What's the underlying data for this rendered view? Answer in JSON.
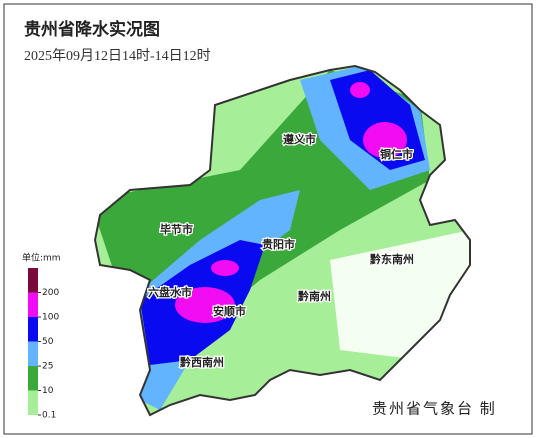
{
  "header": {
    "title": "贵州省降水实况图",
    "subtitle": "2025年09月12日14时-14日12时"
  },
  "legend": {
    "unit": "单位:mm",
    "ticks": [
      0.1,
      10,
      25,
      50,
      100,
      200
    ],
    "colors": [
      "#a6ee98",
      "#3aa83a",
      "#62b4ff",
      "#0a0af0",
      "#f20cf2",
      "#7a0a3c"
    ]
  },
  "regions": [
    {
      "label": "遵义市"
    },
    {
      "label": "铜仁市"
    },
    {
      "label": "毕节市"
    },
    {
      "label": "贵阳市"
    },
    {
      "label": "黔东南州"
    },
    {
      "label": "黔南州"
    },
    {
      "label": "六盘水市"
    },
    {
      "label": "安顺市"
    },
    {
      "label": "黔西南州"
    }
  ],
  "footer": "贵州省气象台 制"
}
